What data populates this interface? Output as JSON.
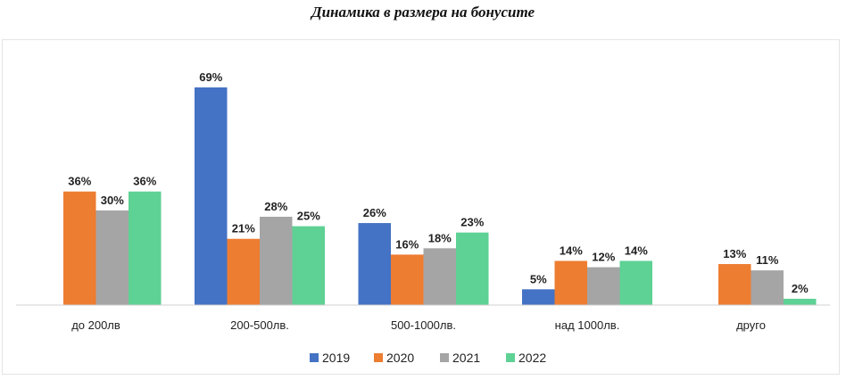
{
  "chart_data": {
    "type": "bar",
    "title": "Динамика в размера на бонусите",
    "categories": [
      "до 200лв",
      "200-500лв.",
      "500-1000лв.",
      "над 1000лв.",
      "друго"
    ],
    "series": [
      {
        "name": "2019",
        "color": "#4472C4",
        "values": [
          null,
          69,
          26,
          5,
          null
        ]
      },
      {
        "name": "2020",
        "color": "#ED7D31",
        "values": [
          36,
          21,
          16,
          14,
          13
        ]
      },
      {
        "name": "2021",
        "color": "#A5A5A5",
        "values": [
          30,
          28,
          18,
          12,
          11
        ]
      },
      {
        "name": "2022",
        "color": "#5ED194",
        "values": [
          36,
          25,
          23,
          14,
          2
        ]
      }
    ],
    "value_suffix": "%",
    "xlabel": "",
    "ylabel": "",
    "ylim": [
      0,
      69
    ],
    "grid": false,
    "legend": "bottom"
  }
}
